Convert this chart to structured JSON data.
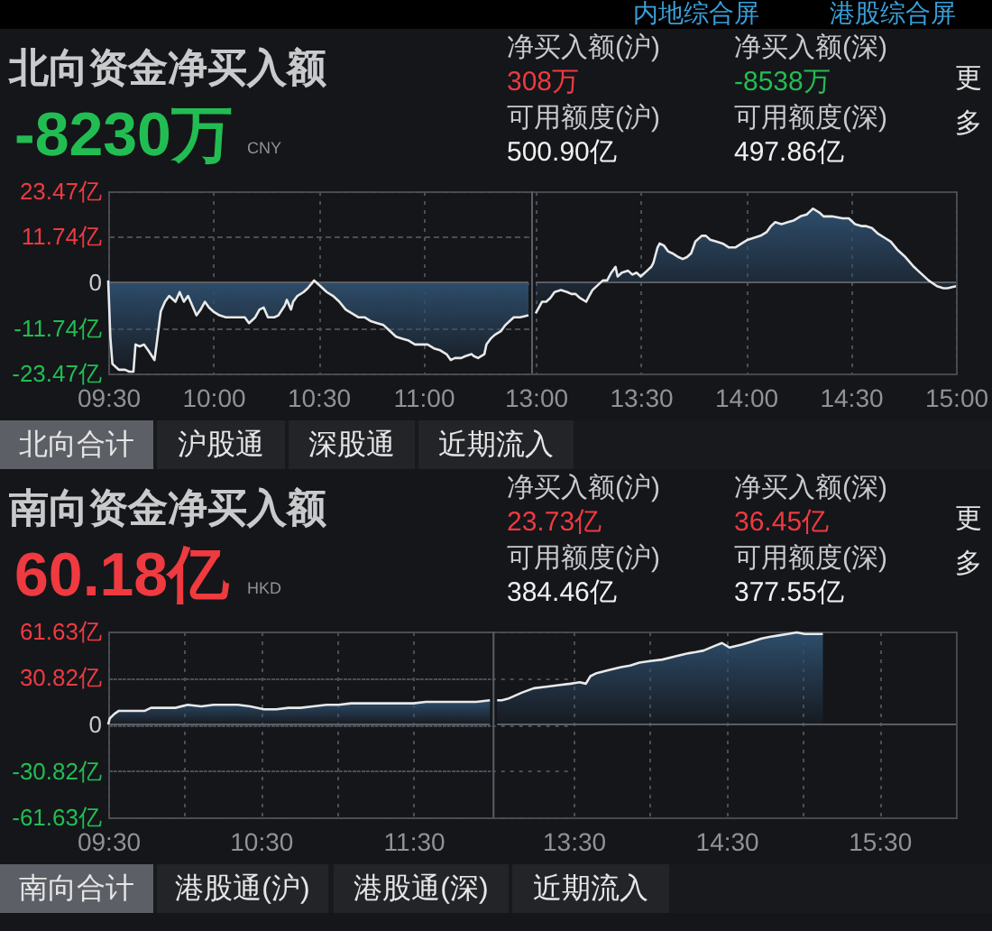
{
  "chart_data": [
    {
      "type": "other",
      "annotations": [
        "内地综合屏",
        "港股综合屏"
      ]
    },
    {
      "type": "other",
      "title": "北向资金净买入额",
      "annotations": [
        "-8230万",
        "CNY",
        "净买入额(沪)",
        "308万",
        "净买入额(深)",
        "-8538万",
        "可用额度(沪)",
        "500.90亿",
        "可用额度(深)",
        "497.86亿",
        "更多"
      ]
    },
    {
      "type": "area",
      "color": "#2e4d6b",
      "x": [
        9.5,
        9.51,
        9.52,
        9.55,
        9.58,
        9.6,
        9.62,
        9.63,
        9.65,
        9.67,
        9.69,
        9.72,
        9.73,
        9.75,
        9.77,
        9.79,
        9.82,
        9.84,
        9.86,
        9.88,
        9.9,
        9.92,
        9.94,
        9.96,
        9.98,
        10.0,
        10.03,
        10.06,
        10.09,
        10.12,
        10.15,
        10.17,
        10.2,
        10.22,
        10.24,
        10.26,
        10.29,
        10.31,
        10.34,
        10.35,
        10.37,
        10.38,
        10.4,
        10.43,
        10.45,
        10.48,
        10.49,
        10.51,
        10.54,
        10.57,
        10.6,
        10.63,
        10.66,
        10.69,
        10.72,
        10.75,
        10.78,
        10.81,
        10.84,
        10.87,
        10.9,
        10.93,
        10.96,
        10.99,
        11.02,
        11.05,
        11.08,
        11.11,
        11.13,
        11.15,
        11.18,
        11.2,
        11.23,
        11.24,
        11.26,
        11.29,
        11.3,
        11.32,
        11.34,
        11.37,
        11.39,
        11.41,
        11.43,
        11.46,
        11.5
      ],
      "values": [
        0.5,
        -14,
        -21,
        -22.5,
        -22.5,
        -23,
        -23,
        -16,
        -16.5,
        -16,
        -17.5,
        -20,
        -16,
        -7.5,
        -5,
        -3.5,
        -5,
        -2.5,
        -5,
        -3.5,
        -6,
        -8.5,
        -7,
        -5,
        -6.5,
        -7.5,
        -8.5,
        -9,
        -9,
        -9,
        -9,
        -10.5,
        -9,
        -7,
        -6.5,
        -9,
        -9,
        -8.5,
        -6,
        -4.5,
        -7,
        -5,
        -3.5,
        -2.5,
        -1.5,
        0.5,
        0,
        -1,
        -2.5,
        -3.5,
        -5,
        -7,
        -8,
        -9,
        -9,
        -10,
        -10.5,
        -11,
        -12.5,
        -14,
        -14.5,
        -15,
        -16,
        -16,
        -16,
        -17,
        -17.5,
        -18.5,
        -20,
        -19.5,
        -19.5,
        -19,
        -18.5,
        -19,
        -19.5,
        -18.5,
        -16,
        -14.5,
        -13.5,
        -12.5,
        -11,
        -10,
        -9,
        -9,
        -8.5
      ],
      "xlim": [
        9.5,
        11.5
      ],
      "xticks": [
        {
          "value": 9.5,
          "label": "09:30"
        },
        {
          "value": 10,
          "label": "10:00"
        },
        {
          "value": 10.5,
          "label": "10:30"
        },
        {
          "value": 11,
          "label": "11:00"
        }
      ],
      "ylim": [
        -23.47,
        23.47
      ],
      "yticks": [
        {
          "value": 23.47,
          "label": "23.47亿"
        },
        {
          "value": 11.74,
          "label": "11.74亿"
        },
        0,
        {
          "value": -11.74,
          "label": "-11.74亿"
        },
        {
          "value": -23.47,
          "label": "-23.47亿"
        }
      ],
      "grid": true,
      "ref_lines": [
        {
          "axis": "y",
          "value": 0
        }
      ]
    },
    {
      "type": "area",
      "color": "#2e4d6b",
      "x": [
        13.0,
        13.01,
        13.03,
        13.05,
        13.07,
        13.09,
        13.12,
        13.15,
        13.17,
        13.19,
        13.21,
        13.24,
        13.25,
        13.27,
        13.3,
        13.32,
        13.34,
        13.36,
        13.38,
        13.39,
        13.41,
        13.44,
        13.46,
        13.48,
        13.5,
        13.53,
        13.55,
        13.56,
        13.58,
        13.59,
        13.61,
        13.63,
        13.65,
        13.68,
        13.7,
        13.72,
        13.74,
        13.76,
        13.79,
        13.81,
        13.83,
        13.86,
        13.89,
        13.92,
        13.95,
        13.98,
        14.01,
        14.04,
        14.07,
        14.1,
        14.12,
        14.14,
        14.17,
        14.2,
        14.23,
        14.26,
        14.29,
        14.31,
        14.32,
        14.35,
        14.37,
        14.41,
        14.46,
        14.49,
        14.52,
        14.55,
        14.57,
        14.6,
        14.63,
        14.66,
        14.69,
        14.72,
        14.76,
        14.8,
        14.84,
        14.87,
        14.91,
        14.94,
        14.96,
        15.0
      ],
      "values": [
        -8,
        -7,
        -5,
        -5,
        -4,
        -2.5,
        -2,
        -2.5,
        -3,
        -3,
        -4,
        -5,
        -4,
        -2,
        -0.5,
        0.5,
        0.5,
        2.5,
        4,
        1.5,
        2.5,
        3,
        2,
        2.5,
        1.5,
        3,
        4,
        5,
        9,
        10,
        9.5,
        8,
        7.5,
        6.5,
        6,
        6.5,
        7.5,
        10.5,
        12,
        12,
        11,
        10.5,
        10,
        9,
        9,
        10,
        11,
        11.5,
        12,
        13,
        14.5,
        15.5,
        15,
        15.5,
        16,
        17,
        17.5,
        18.5,
        19,
        18,
        17,
        17,
        16.5,
        16.5,
        15,
        14.5,
        14.5,
        14,
        12.5,
        11.5,
        10.5,
        8.5,
        6.5,
        4,
        2,
        0.5,
        -1,
        -1.5,
        -1.5,
        -1
      ],
      "xlim": [
        13,
        15
      ],
      "xticks": [
        {
          "value": 13,
          "label": "13:00"
        },
        {
          "value": 13.5,
          "label": "13:30"
        },
        {
          "value": 14,
          "label": "14:00"
        },
        {
          "value": 14.5,
          "label": "14:30"
        },
        {
          "value": 15,
          "label": "15:00"
        }
      ],
      "ylim": [
        -23.47,
        23.47
      ],
      "yticks": [
        {
          "value": 23.47,
          "label": null
        },
        {
          "value": 11.74,
          "label": null
        },
        {
          "value": 0,
          "label": null
        },
        {
          "value": -11.74,
          "label": null
        },
        {
          "value": -23.47,
          "label": null
        }
      ],
      "tick_labels": "x",
      "grid": true,
      "ref_lines": [
        {
          "axis": "y",
          "value": 0
        }
      ]
    },
    {
      "type": "other",
      "annotations": [
        "北向合计",
        "沪股通",
        "深股通",
        "近期流入"
      ]
    },
    {
      "type": "other",
      "title": "南向资金净买入额",
      "annotations": [
        "60.18亿",
        "HKD",
        "净买入额(沪)",
        "23.73亿",
        "净买入额(深)",
        "36.45亿",
        "可用额度(沪)",
        "384.46亿",
        "可用额度(深)",
        "377.55亿",
        "更多"
      ]
    },
    {
      "type": "area",
      "color": "#2e4d6b",
      "x": [
        9.5,
        9.51,
        9.54,
        9.57,
        9.66,
        9.74,
        9.78,
        9.86,
        9.94,
        10.02,
        10.11,
        10.19,
        10.27,
        10.35,
        10.43,
        10.52,
        10.6,
        10.68,
        10.76,
        10.84,
        10.93,
        11.01,
        11.09,
        11.17,
        11.25,
        11.33,
        11.42,
        11.5,
        11.58,
        11.66,
        11.74,
        11.83,
        11.91,
        12.0
      ],
      "values": [
        0,
        4,
        7,
        9,
        9,
        9,
        11,
        11,
        11,
        13,
        12,
        13,
        13,
        13,
        12,
        10,
        10,
        11,
        11,
        12,
        13,
        13,
        14,
        14,
        14,
        14,
        14,
        14,
        15,
        15,
        15,
        15,
        15,
        16
      ],
      "xlim": [
        9.5,
        12
      ],
      "xticks": [
        {
          "value": 9.5,
          "label": "09:30"
        },
        {
          "value": 10,
          "label": null
        },
        {
          "value": 10.5,
          "label": "10:30"
        },
        {
          "value": 11,
          "label": null
        },
        {
          "value": 11.5,
          "label": "11:30"
        }
      ],
      "ylim": [
        -61.63,
        61.63
      ],
      "yticks": [
        {
          "value": 61.63,
          "label": "61.63亿"
        },
        {
          "value": 30.82,
          "label": "30.82亿"
        },
        0,
        {
          "value": -30.82,
          "label": "-30.82亿"
        },
        {
          "value": -61.63,
          "label": "-61.63亿"
        }
      ],
      "grid": true,
      "ref_lines": [
        {
          "axis": "y",
          "value": 0
        }
      ]
    },
    {
      "type": "area",
      "color": "#2e4d6b",
      "x": [
        13.0,
        13.03,
        13.07,
        13.16,
        13.24,
        13.32,
        13.4,
        13.48,
        13.54,
        13.58,
        13.61,
        13.65,
        13.73,
        13.81,
        13.87,
        13.93,
        14.0,
        14.08,
        14.16,
        14.24,
        14.3,
        14.35,
        14.42,
        14.47,
        14.52,
        14.6,
        14.67,
        14.73,
        14.78,
        14.84,
        14.9,
        14.96,
        15.01,
        15.07,
        15.13
      ],
      "values": [
        16,
        16,
        17,
        21,
        24,
        25,
        26,
        27,
        28,
        27,
        32,
        34,
        36,
        38,
        39,
        41,
        42,
        43,
        45,
        47,
        48,
        49,
        52,
        54,
        51,
        53,
        55,
        57,
        58,
        59,
        60,
        61,
        60,
        60,
        60
      ],
      "xlim": [
        13,
        16
      ],
      "xticks": [
        {
          "value": 13.5,
          "label": "13:30"
        },
        {
          "value": 14,
          "label": null
        },
        {
          "value": 14.5,
          "label": "14:30"
        },
        {
          "value": 15,
          "label": null
        },
        {
          "value": 15.5,
          "label": "15:30"
        }
      ],
      "ylim": [
        -61.63,
        61.63
      ],
      "yticks": [
        {
          "value": 61.63,
          "label": null
        },
        {
          "value": 30.82,
          "label": null
        },
        {
          "value": 0,
          "label": null
        },
        {
          "value": -30.82,
          "label": null
        },
        {
          "value": -61.63,
          "label": null
        }
      ],
      "tick_labels": "x",
      "grid": true,
      "ref_lines": [
        {
          "axis": "y",
          "value": 0
        }
      ]
    },
    {
      "type": "other",
      "annotations": [
        "南向合计",
        "港股通(沪)",
        "港股通(深)",
        "近期流入"
      ]
    }
  ]
}
